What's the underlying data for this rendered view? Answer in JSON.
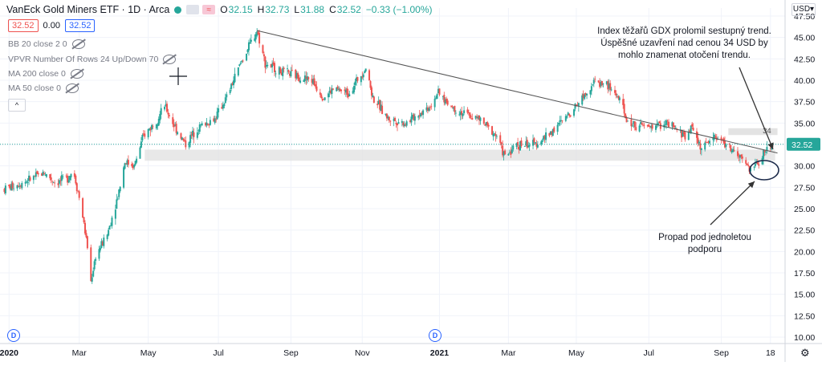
{
  "header": {
    "title": "VanEck Gold Miners ETF · 1D · Arca",
    "open_key": "O",
    "open": "32.15",
    "high_key": "H",
    "high": "32.73",
    "low_key": "L",
    "low": "31.88",
    "close_key": "C",
    "close": "32.52",
    "change": "−0.33 (−1.00%)",
    "bid": "32.52",
    "spread": "0.00",
    "ask": "32.52"
  },
  "indicators": [
    "BB 20 close 2 0",
    "VPVR Number Of Rows 24 Up/Down 70",
    "MA 200 close 0",
    "MA 50 close 0"
  ],
  "collapse_label": "^",
  "currency_label": "USD",
  "annotations": {
    "top": "Index těžařů GDX prolomil sestupný trend. Úspěšné uzavření nad cenou 34 USD by mohlo znamenat otočení trendu.",
    "bottom": "Propad pod jednoletou podporu",
    "level_label": "34"
  },
  "colors": {
    "up": "#26a69a",
    "down": "#ef5350",
    "blue": "#2962ff",
    "grid": "#f0f3fa",
    "zone": "#e0e0e0"
  },
  "chart_data": {
    "type": "candlestick",
    "ylim": [
      10,
      47.5
    ],
    "yticks": [
      "47.50",
      "45.00",
      "42.50",
      "40.00",
      "37.50",
      "35.00",
      "32.50",
      "30.00",
      "27.50",
      "25.00",
      "22.50",
      "20.00",
      "17.50",
      "15.00",
      "12.50",
      "10.00"
    ],
    "xticks": [
      "2020",
      "Mar",
      "May",
      "Jul",
      "Sep",
      "Nov",
      "2021",
      "Mar",
      "May",
      "Jul",
      "Sep",
      "18"
    ],
    "last_price": "32.52",
    "points": [
      [
        "2020-01-02",
        27.3
      ],
      [
        "2020-01-20",
        28.2
      ],
      [
        "2020-02-05",
        29.2
      ],
      [
        "2020-02-15",
        28.0
      ],
      [
        "2020-02-25",
        28.6
      ],
      [
        "2020-03-01",
        29.5
      ],
      [
        "2020-03-08",
        25.0
      ],
      [
        "2020-03-13",
        20.5
      ],
      [
        "2020-03-16",
        16.5
      ],
      [
        "2020-03-20",
        19.5
      ],
      [
        "2020-03-30",
        22.0
      ],
      [
        "2020-04-08",
        26.5
      ],
      [
        "2020-04-14",
        30.5
      ],
      [
        "2020-04-22",
        30.0
      ],
      [
        "2020-04-30",
        33.5
      ],
      [
        "2020-05-12",
        35.5
      ],
      [
        "2020-05-18",
        37.0
      ],
      [
        "2020-05-27",
        34.5
      ],
      [
        "2020-06-05",
        32.5
      ],
      [
        "2020-06-15",
        34.5
      ],
      [
        "2020-06-30",
        35.5
      ],
      [
        "2020-07-10",
        38.0
      ],
      [
        "2020-07-22",
        42.0
      ],
      [
        "2020-08-05",
        45.8
      ],
      [
        "2020-08-12",
        42.0
      ],
      [
        "2020-08-25",
        41.0
      ],
      [
        "2020-09-08",
        40.5
      ],
      [
        "2020-09-21",
        40.0
      ],
      [
        "2020-10-01",
        38.0
      ],
      [
        "2020-10-10",
        39.0
      ],
      [
        "2020-10-22",
        38.5
      ],
      [
        "2020-11-06",
        41.5
      ],
      [
        "2020-11-12",
        38.0
      ],
      [
        "2020-11-25",
        35.5
      ],
      [
        "2020-12-10",
        35.0
      ],
      [
        "2020-12-31",
        37.0
      ],
      [
        "2021-01-06",
        38.5
      ],
      [
        "2021-01-22",
        36.5
      ],
      [
        "2021-02-10",
        35.5
      ],
      [
        "2021-02-26",
        33.5
      ],
      [
        "2021-03-05",
        31.0
      ],
      [
        "2021-03-15",
        32.5
      ],
      [
        "2021-03-30",
        32.5
      ],
      [
        "2021-04-10",
        33.5
      ],
      [
        "2021-04-25",
        35.5
      ],
      [
        "2021-05-10",
        38.0
      ],
      [
        "2021-05-20",
        39.8
      ],
      [
        "2021-05-31",
        39.5
      ],
      [
        "2021-06-10",
        38.0
      ],
      [
        "2021-06-18",
        35.0
      ],
      [
        "2021-07-05",
        34.5
      ],
      [
        "2021-07-20",
        35.0
      ],
      [
        "2021-08-06",
        33.5
      ],
      [
        "2021-08-12",
        34.5
      ],
      [
        "2021-08-20",
        32.0
      ],
      [
        "2021-08-31",
        33.5
      ],
      [
        "2021-09-10",
        32.5
      ],
      [
        "2021-09-25",
        30.5
      ],
      [
        "2021-10-01",
        29.5
      ],
      [
        "2021-10-08",
        30.5
      ],
      [
        "2021-10-15",
        32.0
      ],
      [
        "2021-10-19",
        32.52
      ]
    ],
    "trendline": [
      [
        "2020-08-05",
        45.8
      ],
      [
        "2021-10-15",
        32.0
      ]
    ],
    "support_zone": [
      30.6,
      31.9
    ],
    "resistance_level": 34
  }
}
